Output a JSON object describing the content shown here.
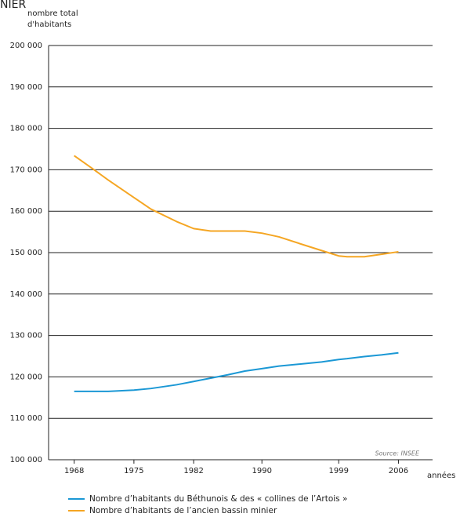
{
  "chart_data": {
    "type": "line",
    "title": "NIER",
    "ylabel": [
      "nombre total",
      "d'habitants"
    ],
    "xlabel": "années",
    "source": "Source: INSEE",
    "x": [
      1968,
      1970,
      1972,
      1975,
      1977,
      1980,
      1982,
      1984,
      1986,
      1988,
      1990,
      1992,
      1995,
      1997,
      1999,
      2000,
      2002,
      2004,
      2006
    ],
    "series": [
      {
        "name": "Nombre d’habitants du Béthunois & des « collines de l’Artois »",
        "color": "#1b98d5",
        "values": [
          116500,
          116500,
          116500,
          116800,
          117200,
          118100,
          118900,
          119700,
          120500,
          121400,
          122000,
          122600,
          123200,
          123600,
          124200,
          124400,
          124900,
          125300,
          125800
        ]
      },
      {
        "name": "Nombre d’habitants de l’ancien bassin minier",
        "color": "#f5a623",
        "values": [
          173400,
          170500,
          167500,
          163300,
          160500,
          157500,
          155800,
          155200,
          155200,
          155200,
          154700,
          153800,
          151800,
          150500,
          149200,
          149000,
          149000,
          149600,
          150200
        ]
      }
    ],
    "xlim": [
      1965,
      2010
    ],
    "xticks": [
      1968,
      1975,
      1982,
      1990,
      1999,
      2006
    ],
    "ylim": [
      100000,
      200000
    ],
    "yticks": [
      {
        "value": 100000,
        "label": "100 000"
      },
      {
        "value": 110000,
        "label": "110 000"
      },
      {
        "value": 120000,
        "label": "120 000"
      },
      {
        "value": 130000,
        "label": "130 000"
      },
      {
        "value": 140000,
        "label": "140 000"
      },
      {
        "value": 150000,
        "label": "150 000"
      },
      {
        "value": 160000,
        "label": "160 000"
      },
      {
        "value": 170000,
        "label": "170 000"
      },
      {
        "value": 180000,
        "label": "180 000"
      },
      {
        "value": 190000,
        "label": "190 000"
      },
      {
        "value": 200000,
        "label": "200 000"
      }
    ],
    "grid": true
  }
}
